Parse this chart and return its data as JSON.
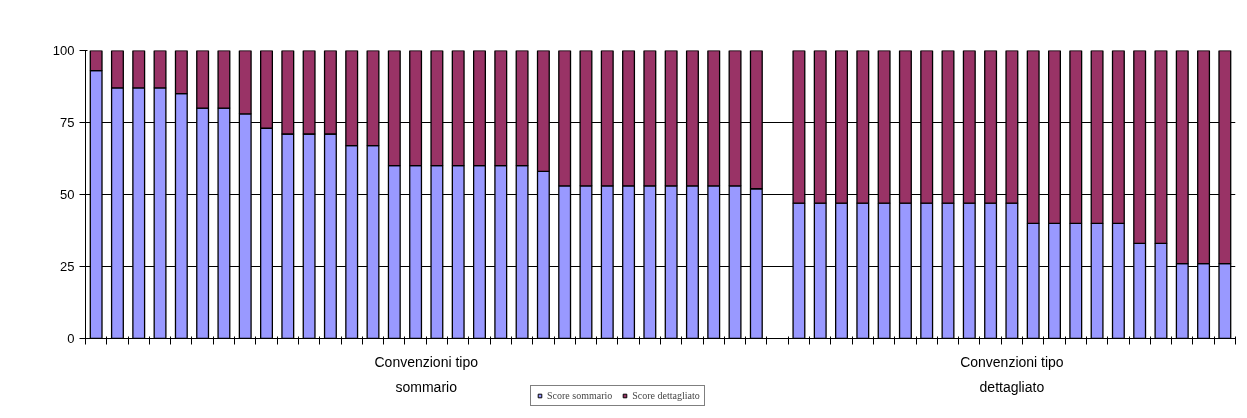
{
  "chart_data": {
    "type": "bar",
    "stacked": true,
    "categories": [
      null,
      null,
      null,
      null,
      null,
      null,
      null,
      null,
      null,
      null,
      null,
      null,
      null,
      null,
      null,
      null,
      null,
      null,
      null,
      null,
      null,
      null,
      null,
      null,
      null,
      null,
      null,
      null,
      null,
      null,
      null,
      null,
      null,
      null,
      null,
      null,
      null,
      null,
      null,
      null,
      null,
      null,
      null,
      null,
      null,
      null,
      null,
      null,
      null,
      null,
      null,
      null,
      null,
      null
    ],
    "series": [
      {
        "name": "Score sommario",
        "color": "#9999ff",
        "values": [
          93,
          87,
          87,
          87,
          85,
          80,
          80,
          78,
          73,
          71,
          71,
          71,
          67,
          67,
          60,
          60,
          60,
          60,
          60,
          60,
          60,
          58,
          53,
          53,
          53,
          53,
          53,
          53,
          53,
          53,
          53,
          52,
          null,
          47,
          47,
          47,
          47,
          47,
          47,
          47,
          47,
          47,
          47,
          47,
          40,
          40,
          40,
          40,
          40,
          33,
          33,
          26,
          26,
          26
        ]
      },
      {
        "name": "Score dettagliato",
        "color": "#993366",
        "values": [
          7,
          13,
          13,
          13,
          15,
          20,
          20,
          22,
          27,
          29,
          29,
          29,
          33,
          33,
          40,
          40,
          40,
          40,
          40,
          40,
          40,
          42,
          47,
          47,
          47,
          47,
          47,
          47,
          47,
          47,
          47,
          48,
          null,
          53,
          53,
          53,
          53,
          53,
          53,
          53,
          53,
          53,
          53,
          53,
          60,
          60,
          60,
          60,
          60,
          67,
          67,
          74,
          74,
          74
        ]
      }
    ],
    "annotations": [
      "Convenzioni tipo\nsommario",
      "Convenzioni tipo\ndettagliato"
    ],
    "ylim": [
      0,
      100
    ],
    "yticks": [
      0,
      25,
      50,
      75,
      100
    ],
    "grid": "y",
    "legend": "bottom",
    "tick_labels": "y"
  }
}
